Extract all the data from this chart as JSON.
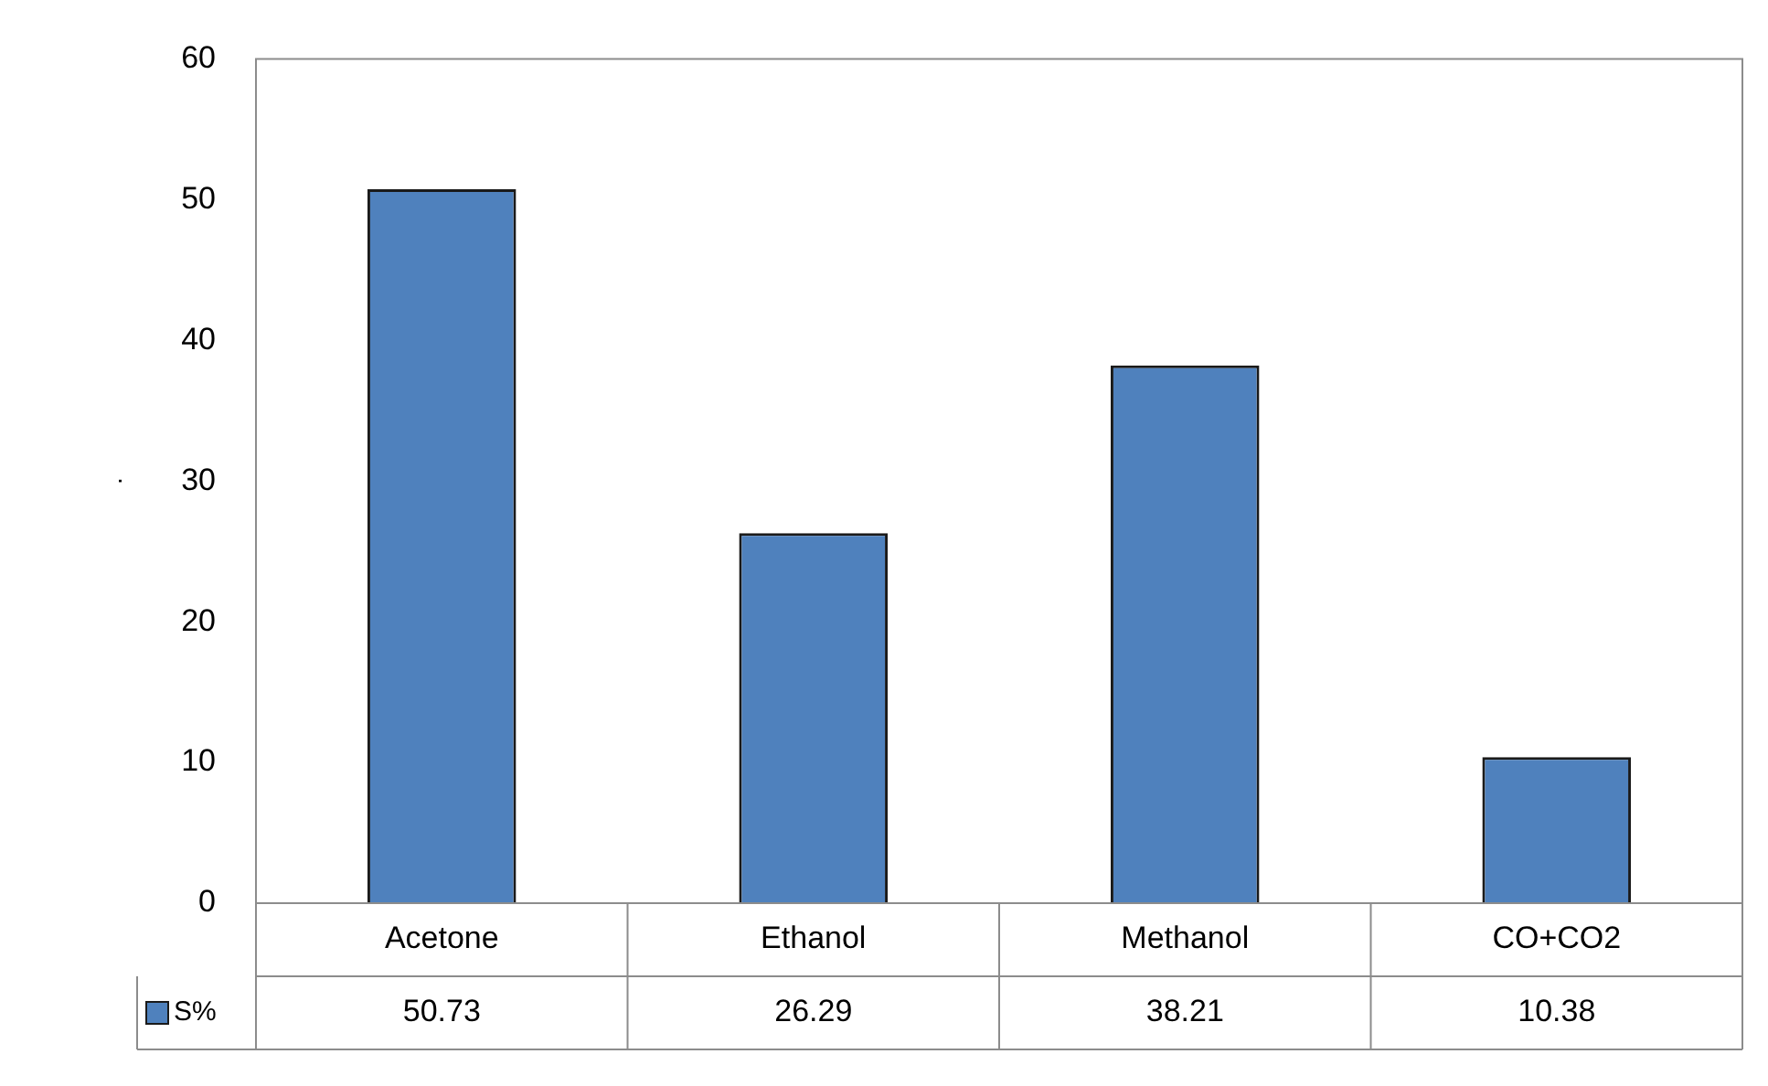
{
  "chart_data": {
    "type": "bar",
    "ylabel": ".",
    "categories": [
      "Acetone",
      "Ethanol",
      "Methanol",
      "CO+CO2"
    ],
    "series": [
      {
        "name": "S%",
        "color": "#4f81bd",
        "values": [
          50.73,
          26.29,
          38.21,
          10.38
        ]
      }
    ],
    "ylim": [
      0,
      60
    ],
    "yticks": [
      0,
      10,
      20,
      30,
      40,
      50,
      60
    ],
    "grid": false,
    "legend": "bottom left",
    "data_labels": true
  }
}
